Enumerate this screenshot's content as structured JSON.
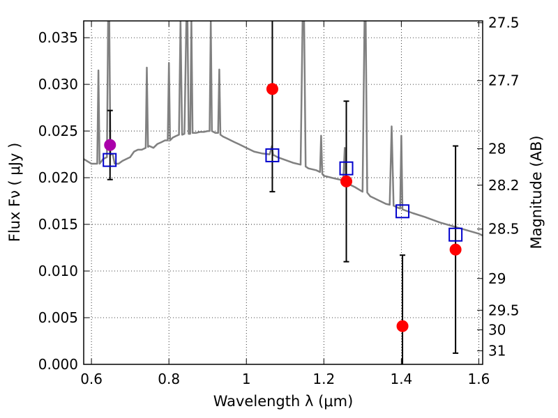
{
  "chart_data": {
    "type": "scatter",
    "xlabel": "Wavelength  λ (μm)",
    "ylabel": "Flux  Fν  ( μJy )",
    "ylabel_right": "Magnitude (AB)",
    "xlim": [
      0.58,
      1.61
    ],
    "ylim": [
      0.0,
      0.0368
    ],
    "grid": true,
    "x_ticks": [
      0.6,
      0.8,
      1.0,
      1.2,
      1.4,
      1.6
    ],
    "x_tick_labels": [
      "0.6",
      "0.8",
      "1",
      "1.2",
      "1.4",
      "1.6"
    ],
    "y_ticks": [
      0.0,
      0.005,
      0.01,
      0.015,
      0.02,
      0.025,
      0.03,
      0.035
    ],
    "y_tick_labels": [
      "0.000",
      "0.005",
      "0.010",
      "0.015",
      "0.020",
      "0.025",
      "0.030",
      "0.035"
    ],
    "mag_ticks": [
      {
        "label": "27.5",
        "flux": 0.0366
      },
      {
        "label": "27.7",
        "flux": 0.0304
      },
      {
        "label": "28",
        "flux": 0.0231
      },
      {
        "label": "28.2",
        "flux": 0.0192
      },
      {
        "label": "28.5",
        "flux": 0.0145
      },
      {
        "label": "29",
        "flux": 0.0092
      },
      {
        "label": "29.5",
        "flux": 0.0058
      },
      {
        "label": "30",
        "flux": 0.0037
      },
      {
        "label": "31",
        "flux": 0.00145
      }
    ],
    "model_spectrum": {
      "color": "#808080",
      "x": [
        0.58,
        0.6,
        0.615,
        0.618,
        0.621,
        0.63,
        0.64,
        0.643,
        0.646,
        0.649,
        0.655,
        0.66,
        0.67,
        0.68,
        0.69,
        0.7,
        0.71,
        0.72,
        0.73,
        0.74,
        0.743,
        0.746,
        0.749,
        0.76,
        0.77,
        0.78,
        0.79,
        0.797,
        0.8,
        0.803,
        0.81,
        0.82,
        0.826,
        0.83,
        0.834,
        0.84,
        0.845,
        0.848,
        0.851,
        0.855,
        0.858,
        0.861,
        0.87,
        0.88,
        0.89,
        0.9,
        0.905,
        0.908,
        0.911,
        0.92,
        0.927,
        0.93,
        0.933,
        0.94,
        0.95,
        0.96,
        0.97,
        0.98,
        0.99,
        1.0,
        1.02,
        1.04,
        1.06,
        1.066,
        1.069,
        1.072,
        1.08,
        1.1,
        1.12,
        1.14,
        1.145,
        1.149,
        1.153,
        1.16,
        1.18,
        1.19,
        1.193,
        1.196,
        1.2,
        1.22,
        1.24,
        1.25,
        1.254,
        1.257,
        1.26,
        1.28,
        1.3,
        1.305,
        1.308,
        1.312,
        1.32,
        1.33,
        1.34,
        1.35,
        1.36,
        1.37,
        1.375,
        1.38,
        1.39,
        1.397,
        1.4,
        1.403,
        1.41,
        1.43,
        1.46,
        1.5,
        1.55,
        1.6,
        1.61
      ],
      "y": [
        0.022,
        0.0215,
        0.0215,
        0.0315,
        0.0215,
        0.022,
        0.0222,
        0.0368,
        0.0368,
        0.0225,
        0.0225,
        0.0215,
        0.0215,
        0.0218,
        0.022,
        0.0222,
        0.0228,
        0.023,
        0.023,
        0.0232,
        0.0318,
        0.0233,
        0.0234,
        0.0232,
        0.0236,
        0.0238,
        0.024,
        0.024,
        0.0323,
        0.024,
        0.0243,
        0.0245,
        0.0246,
        0.0368,
        0.0246,
        0.0247,
        0.0368,
        0.0368,
        0.0247,
        0.0247,
        0.0368,
        0.0248,
        0.0248,
        0.0249,
        0.0249,
        0.025,
        0.025,
        0.0368,
        0.025,
        0.0248,
        0.0248,
        0.0316,
        0.0246,
        0.0244,
        0.0242,
        0.024,
        0.0238,
        0.0236,
        0.0234,
        0.0232,
        0.0228,
        0.0226,
        0.0225,
        0.0234,
        0.0224,
        0.0224,
        0.0222,
        0.0219,
        0.0216,
        0.0214,
        0.0368,
        0.0368,
        0.0212,
        0.021,
        0.0208,
        0.0206,
        0.0245,
        0.0204,
        0.0202,
        0.02,
        0.0198,
        0.0197,
        0.0232,
        0.0196,
        0.0194,
        0.019,
        0.0185,
        0.0368,
        0.0368,
        0.0184,
        0.018,
        0.0178,
        0.0176,
        0.0174,
        0.0172,
        0.0171,
        0.0255,
        0.017,
        0.0168,
        0.0167,
        0.0245,
        0.0166,
        0.0165,
        0.0162,
        0.0158,
        0.0152,
        0.0146,
        0.014,
        0.0138
      ]
    },
    "model_points": {
      "color": "#0000cc",
      "marker": "open-square",
      "x": [
        0.647,
        1.067,
        1.258,
        1.403,
        1.54
      ],
      "y": [
        0.0219,
        0.0224,
        0.021,
        0.0164,
        0.0139
      ]
    },
    "observed_points": {
      "x": [
        0.648,
        1.067,
        1.258,
        1.403,
        1.54
      ],
      "y": [
        0.0235,
        0.0295,
        0.0196,
        0.0041,
        0.0123
      ],
      "err": [
        0.0037,
        0.011,
        0.0086,
        0.0076,
        0.0111
      ],
      "colors": [
        "#aa00aa",
        "#ff0000",
        "#ff0000",
        "#ff0000",
        "#ff0000"
      ],
      "errorbar_color": "#000000"
    }
  }
}
